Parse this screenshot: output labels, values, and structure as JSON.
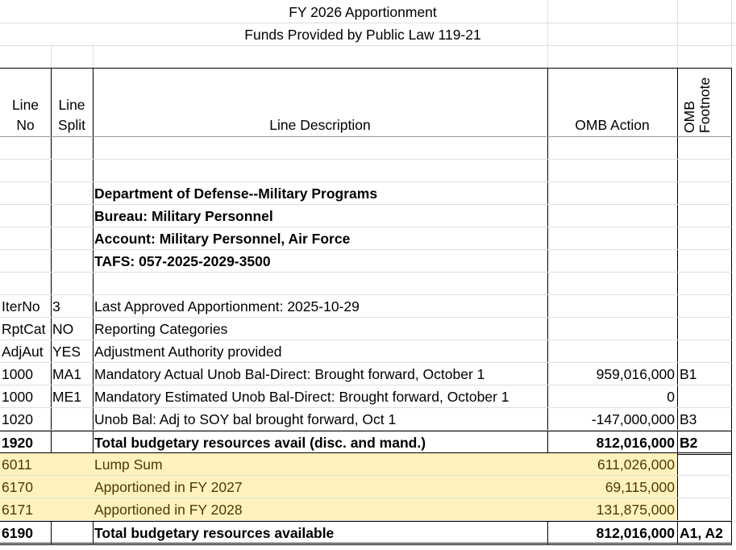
{
  "title": "FY 2026 Apportionment",
  "subtitle": "Funds Provided by Public Law 119-21",
  "headers": {
    "line_no": [
      "Line",
      "No"
    ],
    "line_split": [
      "Line",
      "Split"
    ],
    "description": "Line Description",
    "omb_action": "OMB Action",
    "omb_footnote": [
      "OMB",
      "Footnote"
    ]
  },
  "rows": [
    {
      "no": "",
      "split": "",
      "desc": "",
      "action": "",
      "fn": ""
    },
    {
      "no": "",
      "split": "",
      "desc": "",
      "action": "",
      "fn": ""
    },
    {
      "no": "",
      "split": "",
      "desc": "Department of Defense--Military Programs",
      "action": "",
      "fn": "",
      "bold": true
    },
    {
      "no": "",
      "split": "",
      "desc": "Bureau: Military Personnel",
      "action": "",
      "fn": "",
      "bold": true
    },
    {
      "no": "",
      "split": "",
      "desc": "Account: Military Personnel, Air Force",
      "action": "",
      "fn": "",
      "bold": true
    },
    {
      "no": "",
      "split": "",
      "desc": "TAFS: 057-2025-2029-3500",
      "action": "",
      "fn": "",
      "bold": true
    },
    {
      "no": "",
      "split": "",
      "desc": "",
      "action": "",
      "fn": ""
    },
    {
      "no": "IterNo",
      "split": "3",
      "desc": "Last Approved Apportionment: 2025-10-29",
      "action": "",
      "fn": ""
    },
    {
      "no": "RptCat",
      "split": "NO",
      "desc": "Reporting Categories",
      "action": "",
      "fn": ""
    },
    {
      "no": "AdjAut",
      "split": "YES",
      "desc": "Adjustment Authority provided",
      "action": "",
      "fn": ""
    },
    {
      "no": "1000",
      "split": "MA1",
      "desc": "Mandatory Actual Unob Bal-Direct: Brought forward, October 1",
      "action": "959,016,000",
      "fn": "B1"
    },
    {
      "no": "1000",
      "split": "ME1",
      "desc": "Mandatory Estimated Unob Bal-Direct: Brought forward, October 1",
      "action": "0",
      "fn": ""
    },
    {
      "no": "1020",
      "split": "",
      "desc": "Unob Bal: Adj to SOY bal brought forward, Oct 1",
      "action": "-147,000,000",
      "fn": "B3"
    },
    {
      "no": "1920",
      "split": "",
      "desc": "Total budgetary resources avail (disc. and mand.)",
      "action": "812,016,000",
      "fn": "B2",
      "bold": true,
      "total": true
    },
    {
      "no": "6011",
      "split": "",
      "desc": "Lump Sum",
      "action": "611,026,000",
      "fn": "",
      "highlight": true
    },
    {
      "no": "6170",
      "split": "",
      "desc": "Apportioned in FY 2027",
      "action": "69,115,000",
      "fn": "",
      "highlight": true
    },
    {
      "no": "6171",
      "split": "",
      "desc": "Apportioned in FY 2028",
      "action": "131,875,000",
      "fn": "",
      "highlight": true
    },
    {
      "no": "6190",
      "split": "",
      "desc": "Total budgetary resources available",
      "action": "812,016,000",
      "fn": "A1, A2",
      "bold": true,
      "total": true
    }
  ],
  "colors": {
    "highlight": "#fff2bf",
    "highlight_text": "#4a3c00"
  }
}
